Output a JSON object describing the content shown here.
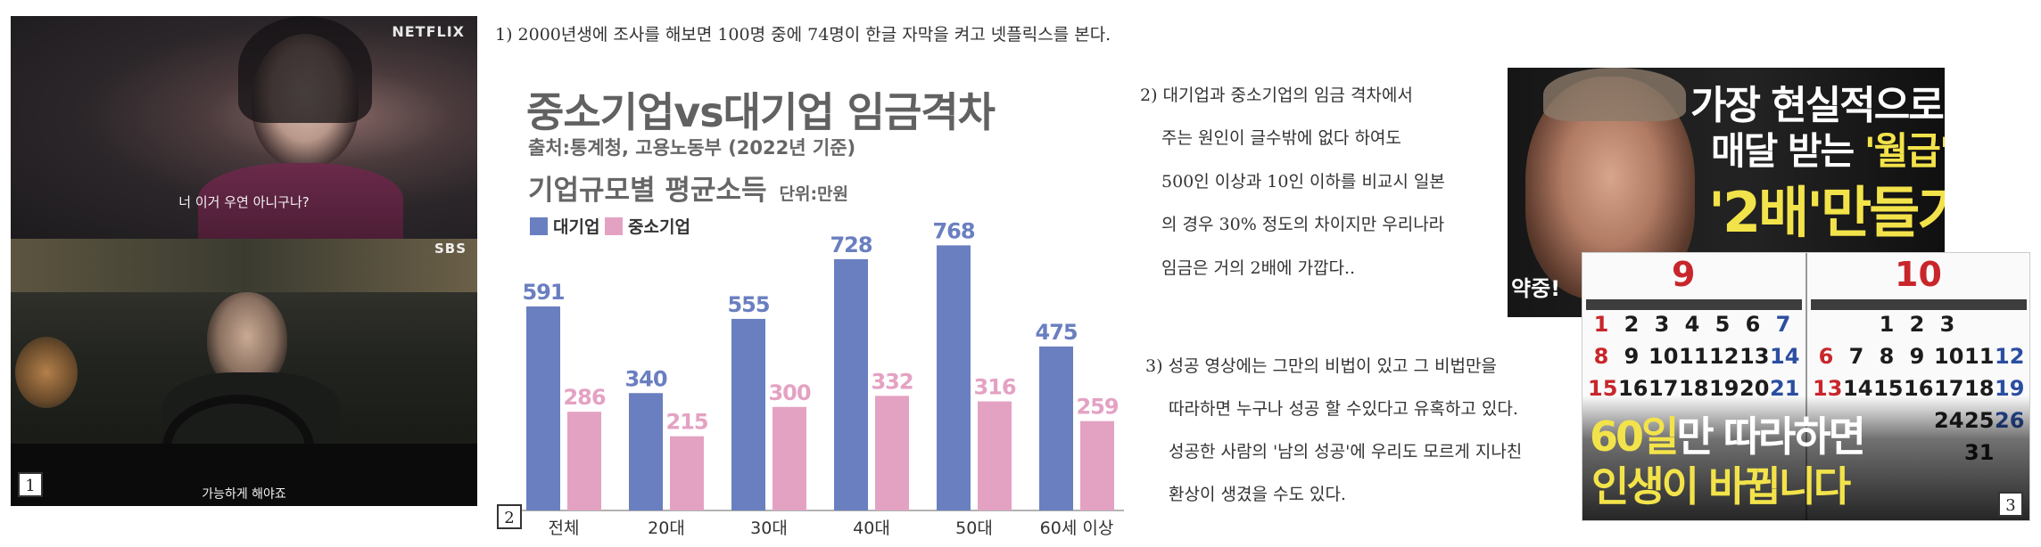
{
  "panel1": {
    "top_logo": "NETFLIX",
    "top_subtitle": "너 이거 우연 아니구나?",
    "bottom_logo": "SBS",
    "bottom_subtitle": "가능하게 해야죠",
    "number": "1"
  },
  "note1": "1) 2000년생에 조사를 해보면 100명 중에 74명이 한글 자막을 켜고 넷플릭스를 본다.",
  "note2_lines": [
    "2) 대기업과 중소기업의 임금 격차에서",
    "주는 원인이 글수밖에 없다 하여도",
    "500인 이상과 10인 이하를 비교시 일본",
    "의 경우 30% 정도의 차이지만 우리나라",
    "임금은 거의 2배에 가깝다.."
  ],
  "note3_lines": [
    "3) 성공 영상에는 그만의 비법이 있고 그 비법만을",
    "따라하면 누구나 성공 할 수있다고  유혹하고 있다.",
    "성공한 사람의 '남의 성공'에 우리도 모르게 지나친",
    "환상이 생겼을 수도 있다."
  ],
  "panel2_number": "2",
  "panel3": {
    "thumb_line1": "가장 현실적으로",
    "thumb_line2_a": "매달 받는 ",
    "thumb_line2_b": "'월급'",
    "thumb_line3_a": "'2배'",
    "thumb_line3_b": "만들기",
    "thumb_corner": "약중!",
    "cal_month_left": "9",
    "cal_month_right": "10",
    "cal_left_rows": [
      [
        "1",
        "2",
        "3",
        "4",
        "5",
        "6",
        "7"
      ],
      [
        "8",
        "9",
        "10",
        "11",
        "12",
        "13",
        "14"
      ],
      [
        "15",
        "16",
        "17",
        "18",
        "19",
        "20",
        "21"
      ]
    ],
    "cal_right_rows": [
      [
        "",
        "",
        "1",
        "2",
        "3",
        "",
        ""
      ],
      [
        "6",
        "7",
        "8",
        "9",
        "10",
        "11",
        "12"
      ],
      [
        "13",
        "14",
        "15",
        "16",
        "17",
        "18",
        "19"
      ],
      [
        "",
        "",
        "",
        "",
        "24",
        "25",
        "26"
      ],
      [
        "",
        "",
        "",
        "",
        "",
        "31",
        ""
      ]
    ],
    "cal_line1_a": "60일",
    "cal_line1_b": "만 따라하면",
    "cal_line2": "인생이 바뀝니다",
    "number": "3"
  },
  "chart_data": {
    "type": "bar",
    "title": "중소기업vs대기업 임금격차",
    "source": "출처:통계청, 고용노동부 (2022년 기준)",
    "subtitle": "기업규모별 평균소득",
    "unit": "단위:만원",
    "categories": [
      "전체",
      "20대",
      "30대",
      "40대",
      "50대",
      "60세 이상"
    ],
    "series": [
      {
        "name": "대기업",
        "values": [
          591,
          340,
          555,
          728,
          768,
          475
        ],
        "color": "#6a7fc0"
      },
      {
        "name": "중소기업",
        "values": [
          286,
          215,
          300,
          332,
          316,
          259
        ],
        "color": "#e4a2c3"
      }
    ],
    "ylim": [
      0,
      800
    ],
    "grid": false,
    "legend": "top-left"
  }
}
